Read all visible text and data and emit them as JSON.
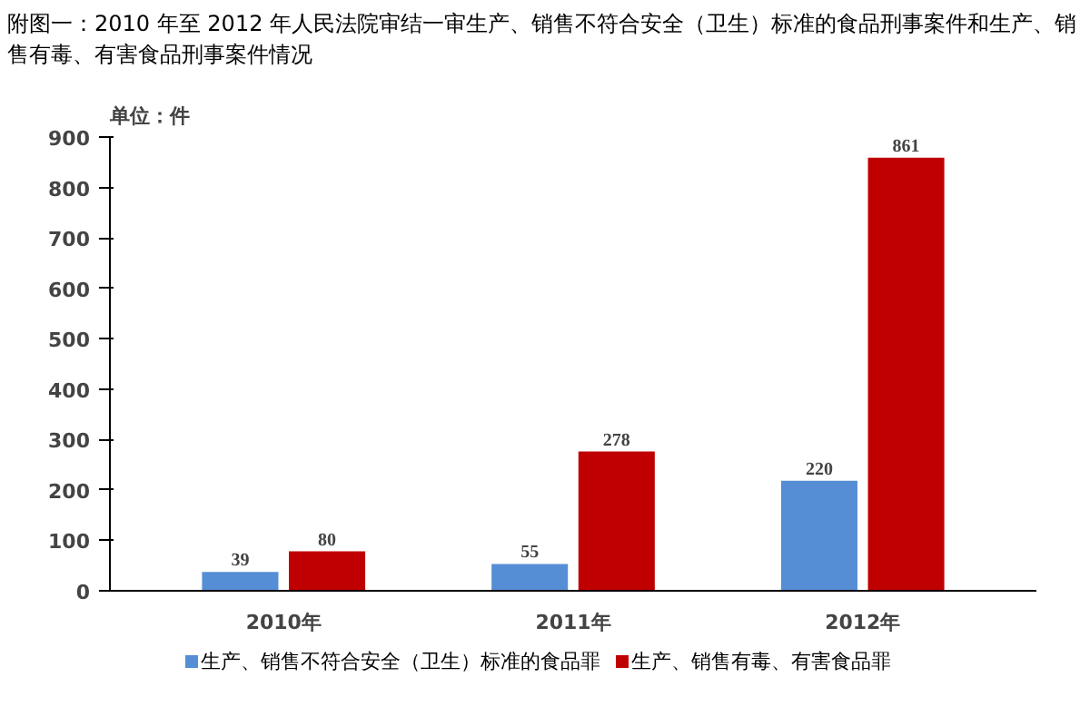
{
  "chart_data": {
    "type": "bar",
    "title": "附图一：2010 年至 2012 年人民法院审结一审生产、销售不符合安全（卫生）标准的食品刑事案件和生产、销售有毒、有害食品刑事案件情况",
    "ylabel": "单位：件",
    "categories": [
      "2010年",
      "2011年",
      "2012年"
    ],
    "series": [
      {
        "name": "生产、销售不符合安全（卫生）标准的食品罪",
        "color": "#558ed5",
        "values": [
          39,
          55,
          220
        ]
      },
      {
        "name": "生产、销售有毒、有害食品罪",
        "color": "#c00000",
        "values": [
          80,
          278,
          861
        ]
      }
    ],
    "ylim": [
      0,
      900
    ],
    "yticks": [
      0,
      100,
      200,
      300,
      400,
      500,
      600,
      700,
      800,
      900
    ],
    "grid": false,
    "legend": "bottom",
    "data_labels": true
  }
}
